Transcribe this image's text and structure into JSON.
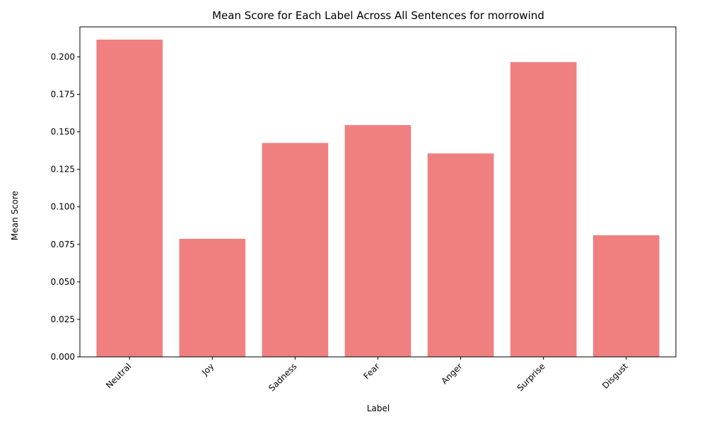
{
  "chart_data": {
    "type": "bar",
    "title": "Mean Score for Each Label Across All Sentences for morrowind",
    "xlabel": "Label",
    "ylabel": "Mean Score",
    "categories": [
      "Neutral",
      "Joy",
      "Sadness",
      "Fear",
      "Anger",
      "Surprise",
      "Disgust"
    ],
    "values": [
      0.2115,
      0.0787,
      0.1426,
      0.1545,
      0.1356,
      0.1965,
      0.0811
    ],
    "ylim": [
      0,
      0.22
    ],
    "yticks": [
      "0.000",
      "0.025",
      "0.050",
      "0.075",
      "0.100",
      "0.125",
      "0.150",
      "0.175",
      "0.200"
    ],
    "ytick_values": [
      0,
      0.025,
      0.05,
      0.075,
      0.1,
      0.125,
      0.15,
      0.175,
      0.2
    ],
    "grid": false,
    "bar_color": "#f08080",
    "x_tick_rotation_deg": 45
  }
}
